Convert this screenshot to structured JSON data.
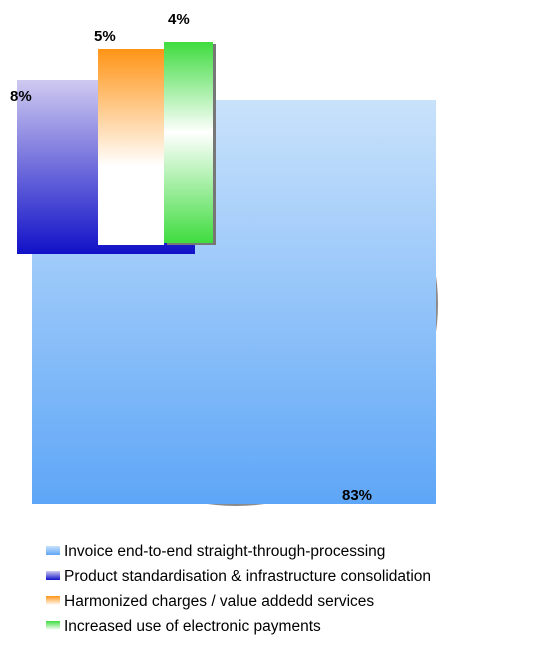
{
  "chart_data": {
    "type": "pie",
    "title": "",
    "slices": [
      {
        "label": "Invoice end-to-end straight-through-processing",
        "value": 83,
        "display": "83%",
        "color_top": "#c9e2fb",
        "color_bottom": "#5ea6f7"
      },
      {
        "label": "Product standardisation & infrastructure consolidation",
        "value": 8,
        "display": "8%",
        "color_top": "#cfcaf0",
        "color_bottom": "#1111c8"
      },
      {
        "label": "Harmonized charges / value addedd services",
        "value": 5,
        "display": "5%",
        "color_top": "#ff9416",
        "color_bottom": "#ffffff"
      },
      {
        "label": "Increased use of electronic payments",
        "value": 4,
        "display": "4%",
        "color_top": "#3fdc3f",
        "color_bottom": "#ffffff"
      }
    ],
    "legend_position": "bottom"
  }
}
